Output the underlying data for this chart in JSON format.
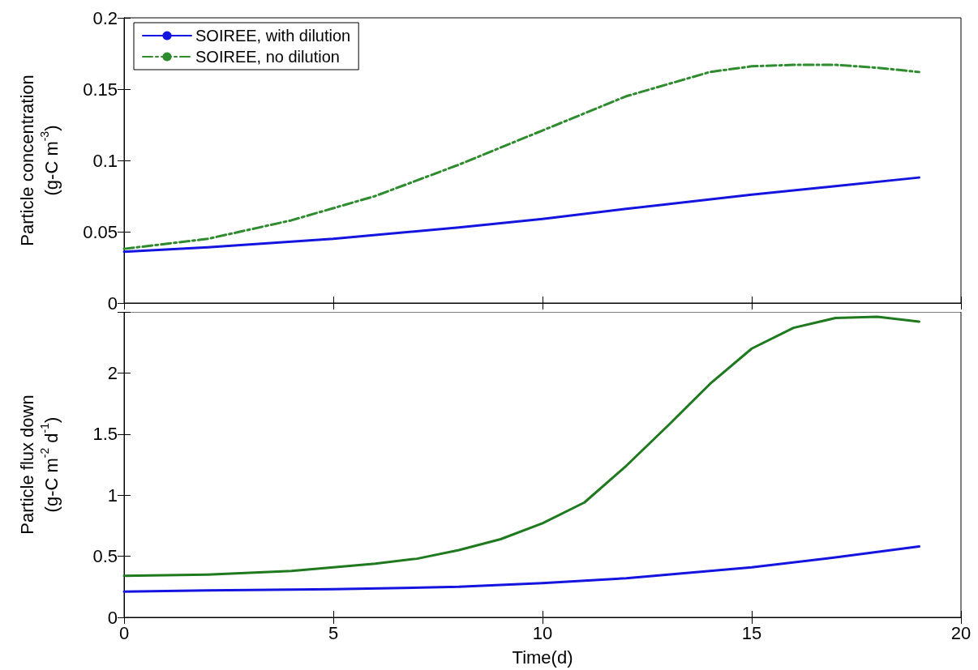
{
  "chart_data": [
    {
      "type": "line",
      "ylabel": "Particle concentration\n(g-C m$^{-3}$)",
      "xlim": [
        0,
        20
      ],
      "xticks": [
        0,
        5,
        10,
        15,
        20
      ],
      "ylim": [
        0,
        0.2
      ],
      "yticks": [
        0,
        0.05,
        0.1,
        0.15,
        0.2
      ],
      "tick_labels": "y",
      "legend": "top left",
      "marker": "none",
      "series": [
        {
          "name": "SOIREE, with dilution",
          "color": "#1414e0",
          "line_style": "solid",
          "x": [
            0,
            2,
            5,
            8,
            10,
            12,
            15,
            17,
            19
          ],
          "values": [
            0.036,
            0.039,
            0.045,
            0.053,
            0.059,
            0.066,
            0.076,
            0.082,
            0.088
          ]
        },
        {
          "name": "SOIREE, no dilution",
          "color": "#2e8b2e",
          "line_style": "dashed",
          "x": [
            0,
            2,
            4,
            6,
            8,
            10,
            12,
            14,
            15,
            16,
            17,
            18,
            19
          ],
          "values": [
            0.038,
            0.045,
            0.058,
            0.075,
            0.097,
            0.121,
            0.145,
            0.162,
            0.166,
            0.167,
            0.167,
            0.165,
            0.162
          ]
        }
      ]
    },
    {
      "type": "line",
      "xlabel": "Time(d)",
      "ylabel": "Particle flux down\n(g-C m$^{-2}$ d$^{-1}$)",
      "xlim": [
        0,
        20
      ],
      "xticks": [
        0,
        5,
        10,
        15,
        20
      ],
      "ylim": [
        0,
        2.5
      ],
      "yticks": [
        0,
        0.5,
        1,
        1.5,
        2,
        {
          "value": 2.5,
          "label": null
        }
      ],
      "marker": "none",
      "series": [
        {
          "color": "#1414e0",
          "line_style": "solid",
          "x": [
            0,
            2,
            5,
            8,
            10,
            12,
            14,
            15,
            17,
            19
          ],
          "values": [
            0.21,
            0.22,
            0.23,
            0.25,
            0.28,
            0.32,
            0.38,
            0.41,
            0.49,
            0.58
          ]
        },
        {
          "color": "#1f7a1f",
          "line_style": "solid",
          "x": [
            0,
            2,
            4,
            5,
            6,
            7,
            8,
            9,
            10,
            11,
            12,
            13,
            14,
            15,
            16,
            17,
            18,
            19
          ],
          "values": [
            0.34,
            0.35,
            0.38,
            0.41,
            0.44,
            0.48,
            0.55,
            0.64,
            0.77,
            0.94,
            1.24,
            1.57,
            1.91,
            2.2,
            2.37,
            2.45,
            2.46,
            2.42
          ]
        }
      ]
    }
  ]
}
